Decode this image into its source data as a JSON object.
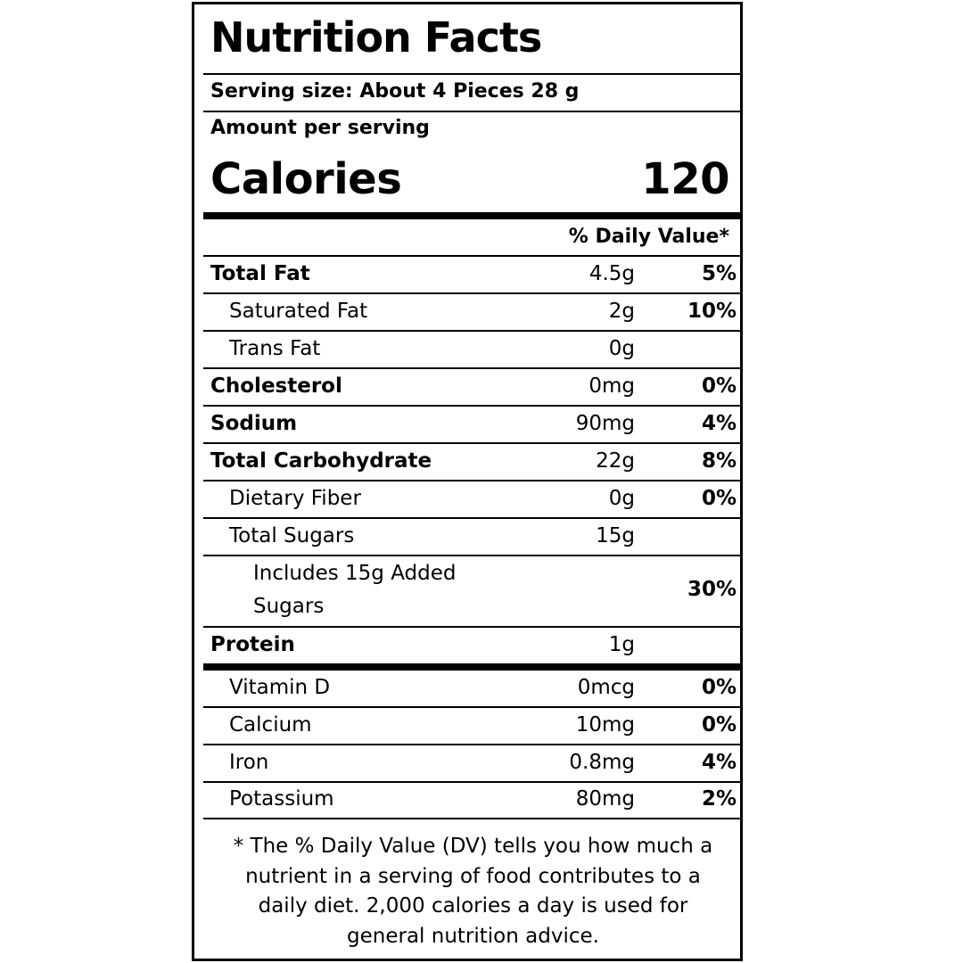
{
  "title": "Nutrition Facts",
  "serving_size": "Serving size: About 4 Pieces 28 g",
  "amount_per_serving": "Amount per serving",
  "calories": {
    "label": "Calories",
    "value": "120"
  },
  "daily_value_header": "% Daily Value*",
  "nutrients": [
    {
      "name": "Total Fat",
      "amount": "4.5g",
      "dv": "5%"
    },
    {
      "name": "Saturated Fat",
      "amount": "2g",
      "dv": "10%"
    },
    {
      "name": "Trans Fat",
      "amount": "0g",
      "dv": ""
    },
    {
      "name": "Cholesterol",
      "amount": "0mg",
      "dv": "0%"
    },
    {
      "name": "Sodium",
      "amount": "90mg",
      "dv": "4%"
    },
    {
      "name": "Total Carbohydrate",
      "amount": "22g",
      "dv": "8%"
    },
    {
      "name": "Dietary Fiber",
      "amount": "0g",
      "dv": "0%"
    },
    {
      "name": "Total Sugars",
      "amount": "15g",
      "dv": ""
    },
    {
      "name": "Includes 15g Added Sugars",
      "amount": "",
      "dv": "30%"
    },
    {
      "name": "Protein",
      "amount": "1g",
      "dv": ""
    }
  ],
  "vitamins": [
    {
      "name": "Vitamin D",
      "amount": "0mcg",
      "dv": "0%"
    },
    {
      "name": "Calcium",
      "amount": "10mg",
      "dv": "0%"
    },
    {
      "name": "Iron",
      "amount": "0.8mg",
      "dv": "4%"
    },
    {
      "name": "Potassium",
      "amount": "80mg",
      "dv": "2%"
    }
  ],
  "footnote": "* The % Daily Value (DV) tells you how much a nutrient in a serving of food contributes to a daily diet. 2,000 calories a day is used for general nutrition advice."
}
